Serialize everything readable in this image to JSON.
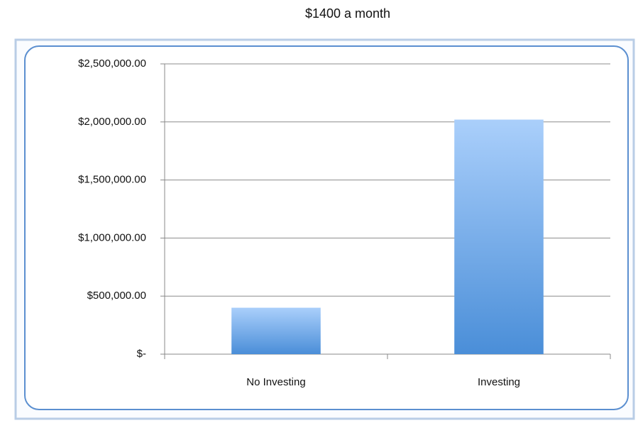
{
  "chart_data": {
    "type": "bar",
    "title": "$1400 a month",
    "categories": [
      "No Investing",
      "Investing"
    ],
    "values": [
      400000,
      2020000
    ],
    "gradient": [
      "#aacffb",
      "#4a8ed8"
    ],
    "ylim": [
      0,
      2500000
    ],
    "yticks": [
      {
        "value": 0,
        "label": "$-"
      },
      {
        "value": 500000,
        "label": "$500,000.00"
      },
      {
        "value": 1000000,
        "label": "$1,000,000.00"
      },
      {
        "value": 1500000,
        "label": "$1,500,000.00"
      },
      {
        "value": 2000000,
        "label": "$2,000,000.00"
      },
      {
        "value": 2500000,
        "label": "$2,500,000.00"
      }
    ],
    "grid": true
  }
}
